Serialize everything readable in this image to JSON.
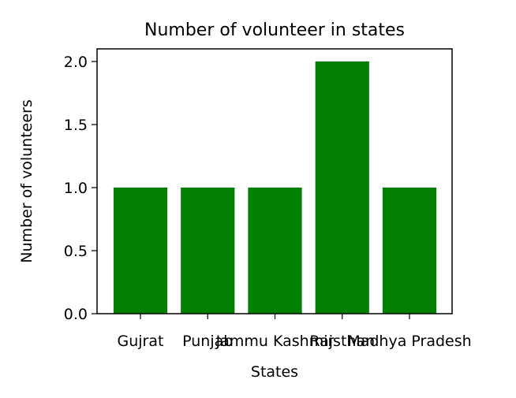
{
  "chart_data": {
    "type": "bar",
    "title": "Number of volunteer in states",
    "xlabel": "States",
    "ylabel": "Number of volunteers",
    "categories": [
      "Gujrat",
      "Punjab",
      "Jammu Kashmir",
      "Rajsthan",
      "Madhya Pradesh"
    ],
    "values": [
      1,
      1,
      1,
      2,
      1
    ],
    "ylim": [
      0,
      2.1
    ],
    "yticks": [
      "0.0",
      "0.5",
      "1.0",
      "1.5",
      "2.0"
    ],
    "grid": false,
    "legend": "none",
    "bar_color": "#008000"
  }
}
